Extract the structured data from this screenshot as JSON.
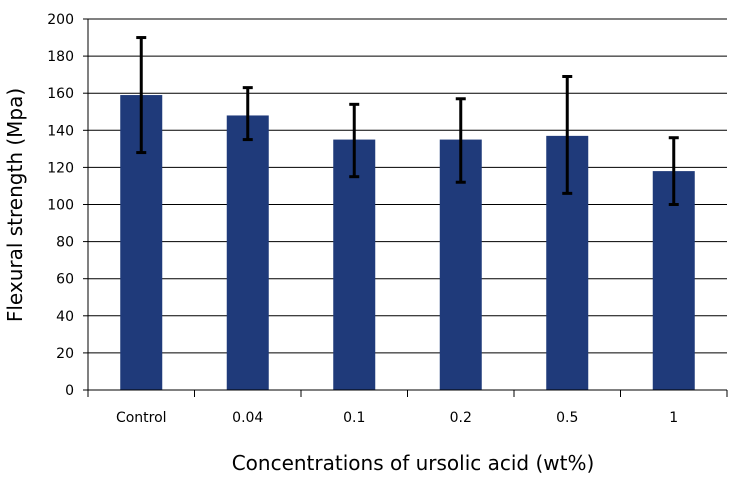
{
  "chart_data": {
    "type": "bar",
    "title": "",
    "xlabel": "Concentrations of ursolic acid (wt%)",
    "ylabel": "Flexural strength (Mpa)",
    "categories": [
      "Control",
      "0.04",
      "0.1",
      "0.2",
      "0.5",
      "1"
    ],
    "values": [
      159,
      148,
      135,
      135,
      137,
      118
    ],
    "error_low": [
      128,
      135,
      115,
      112,
      106,
      100
    ],
    "error_high": [
      190,
      163,
      154,
      157,
      169,
      136
    ],
    "ylim": [
      0,
      200
    ],
    "yticks": [
      0,
      20,
      40,
      60,
      80,
      100,
      120,
      140,
      160,
      180,
      200
    ],
    "grid": true,
    "legend": "none",
    "colors": {
      "bar": "#1f3a7a",
      "error": "#000000",
      "grid": "#000000",
      "axis": "#000000"
    }
  }
}
